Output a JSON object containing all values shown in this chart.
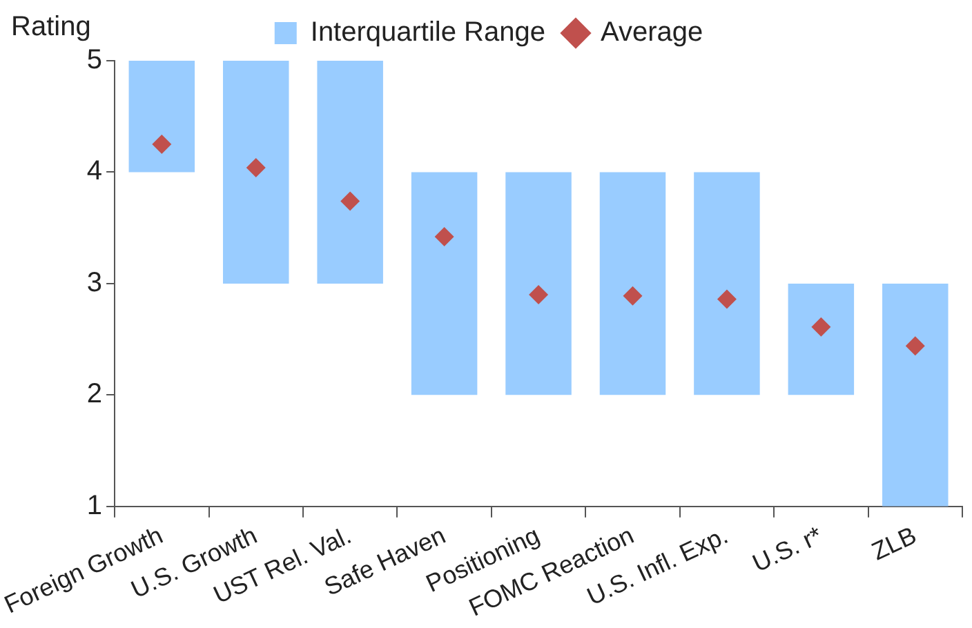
{
  "chart_data": {
    "type": "bar",
    "ylabel": "Rating",
    "categories": [
      "Foreign Growth",
      "U.S. Growth",
      "UST Rel. Val.",
      "Safe Haven",
      "Positioning",
      "FOMC Reaction",
      "U.S. Infl. Exp.",
      "U.S. r*",
      "ZLB"
    ],
    "ylim": [
      1,
      5
    ],
    "yticks": [
      1,
      2,
      3,
      4,
      5
    ],
    "grid": false,
    "legend": "top",
    "marker": "diamond",
    "series": [
      {
        "name": "Interquartile Range",
        "color": "#99ccff",
        "base": [
          4,
          3,
          3,
          2,
          2,
          2,
          2,
          2,
          1
        ],
        "values": [
          1,
          2,
          2,
          2,
          2,
          2,
          2,
          1,
          2
        ]
      },
      {
        "name": "Average",
        "type": "scatter",
        "color": "#c0504d",
        "x": [
          "Foreign Growth",
          "U.S. Growth",
          "UST Rel. Val.",
          "Safe Haven",
          "Positioning",
          "FOMC Reaction",
          "U.S. Infl. Exp.",
          "U.S. r*",
          "ZLB"
        ],
        "values": [
          4.25,
          4.04,
          3.74,
          3.42,
          2.9,
          2.89,
          2.86,
          2.61,
          2.44
        ]
      }
    ]
  }
}
